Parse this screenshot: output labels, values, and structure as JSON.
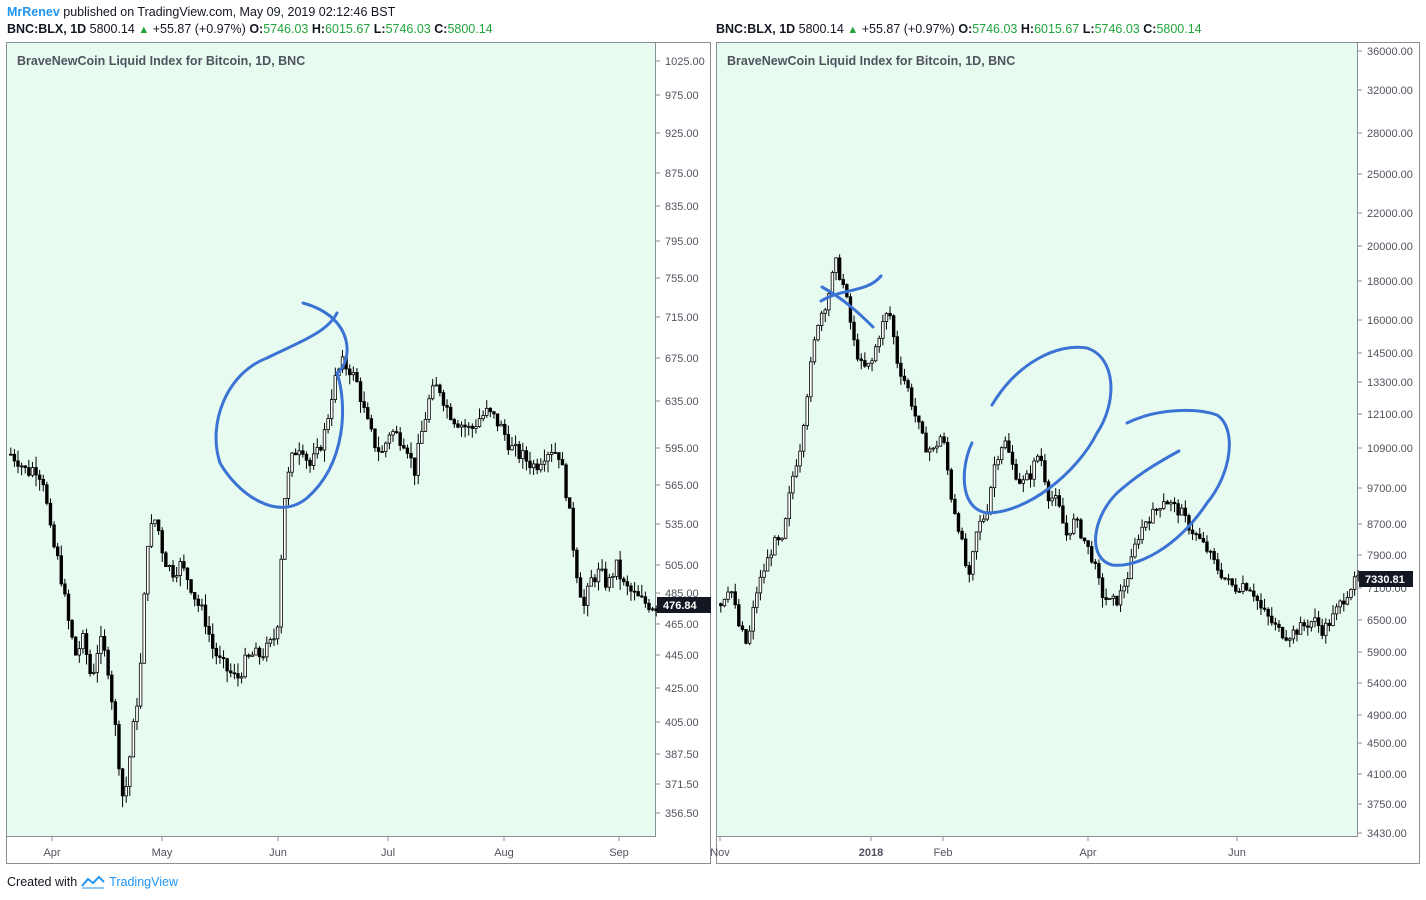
{
  "header": {
    "author": "MrRenev",
    "published": "published on TradingView.com, May 09, 2019 02:12:46 BST"
  },
  "legend": {
    "symbol": "BNC:BLX, 1D",
    "last": "5800.14",
    "change": "+55.87 (+0.97%)",
    "o_label": "O:",
    "o": "5746.03",
    "h_label": "H:",
    "h": "6015.67",
    "l_label": "L:",
    "l": "5746.03",
    "c_label": "C:",
    "c": "5800.14"
  },
  "footer": {
    "created_with": "Created with",
    "brand": "TradingView"
  },
  "colors": {
    "plot_bg": "#e8fbf1",
    "candle": "#000000",
    "annotation": "#3b73d4",
    "price_tag": "#131722"
  },
  "chart_data": [
    {
      "type": "candlestick",
      "title": "BraveNewCoin Liquid Index for Bitcoin, 1D, BNC",
      "y_ticks": [
        "1025.00",
        "975.00",
        "925.00",
        "875.00",
        "835.00",
        "795.00",
        "755.00",
        "715.00",
        "675.00",
        "635.00",
        "595.00",
        "565.00",
        "535.00",
        "505.00",
        "485.00",
        "465.00",
        "445.00",
        "425.00",
        "405.00",
        "387.50",
        "371.50",
        "356.50"
      ],
      "x_ticks": [
        "Apr",
        "May",
        "Jun",
        "Jul",
        "Aug",
        "Sep"
      ],
      "last_price": "476.84",
      "close_series": [
        590,
        585,
        575,
        580,
        570,
        525,
        505,
        470,
        445,
        455,
        430,
        455,
        440,
        400,
        360,
        395,
        430,
        525,
        540,
        510,
        500,
        505,
        495,
        480,
        470,
        450,
        440,
        435,
        430,
        440,
        445,
        445,
        450,
        460,
        560,
        590,
        600,
        580,
        590,
        610,
        650,
        670,
        665,
        650,
        620,
        600,
        590,
        610,
        605,
        600,
        575,
        610,
        640,
        650,
        630,
        620,
        615,
        610,
        620,
        625,
        620,
        610,
        595,
        590,
        585,
        580,
        590,
        595,
        590,
        555,
        505,
        475,
        495,
        500,
        490,
        505,
        490,
        485,
        480,
        478,
        477
      ],
      "annotations": [
        "circle around Jun peak (~675)"
      ]
    },
    {
      "type": "candlestick",
      "title": "BraveNewCoin Liquid Index for Bitcoin, 1D, BNC",
      "y_scale": "log",
      "y_ticks": [
        "36000.00",
        "32000.00",
        "28000.00",
        "25000.00",
        "22000.00",
        "20000.00",
        "18000.00",
        "16000.00",
        "14500.00",
        "13300.00",
        "12100.00",
        "10900.00",
        "9700.00",
        "8700.00",
        "7900.00",
        "7100.00",
        "6500.00",
        "5900.00",
        "5400.00",
        "4900.00",
        "4500.00",
        "4100.00",
        "3750.00",
        "3430.00"
      ],
      "x_ticks": [
        "Nov",
        "2018",
        "Feb",
        "Apr",
        "Jun"
      ],
      "last_price": "7330.81",
      "close_series": [
        6800,
        7200,
        6400,
        6000,
        7000,
        7600,
        8200,
        8200,
        9900,
        11000,
        13500,
        16000,
        17000,
        19000,
        17500,
        15000,
        13800,
        14000,
        15500,
        16500,
        14000,
        13200,
        12000,
        11000,
        10800,
        11400,
        9500,
        8500,
        7200,
        8600,
        9000,
        10500,
        11200,
        10300,
        9800,
        10100,
        10800,
        9500,
        9300,
        8400,
        8800,
        8300,
        7800,
        7000,
        6800,
        6900,
        7400,
        8300,
        8800,
        9000,
        9400,
        9200,
        9000,
        8600,
        8300,
        8000,
        7600,
        7300,
        7100,
        7200,
        7100,
        6700,
        6500,
        6300,
        6200,
        6300,
        6400,
        6500,
        6300,
        6500,
        6800,
        7100,
        7330
      ],
      "annotations": [
        "X mark at Dec peak (~18000)",
        "circle around Feb–Mar rally (~11000)",
        "circle around Apr–May rally (~9700)"
      ]
    }
  ]
}
